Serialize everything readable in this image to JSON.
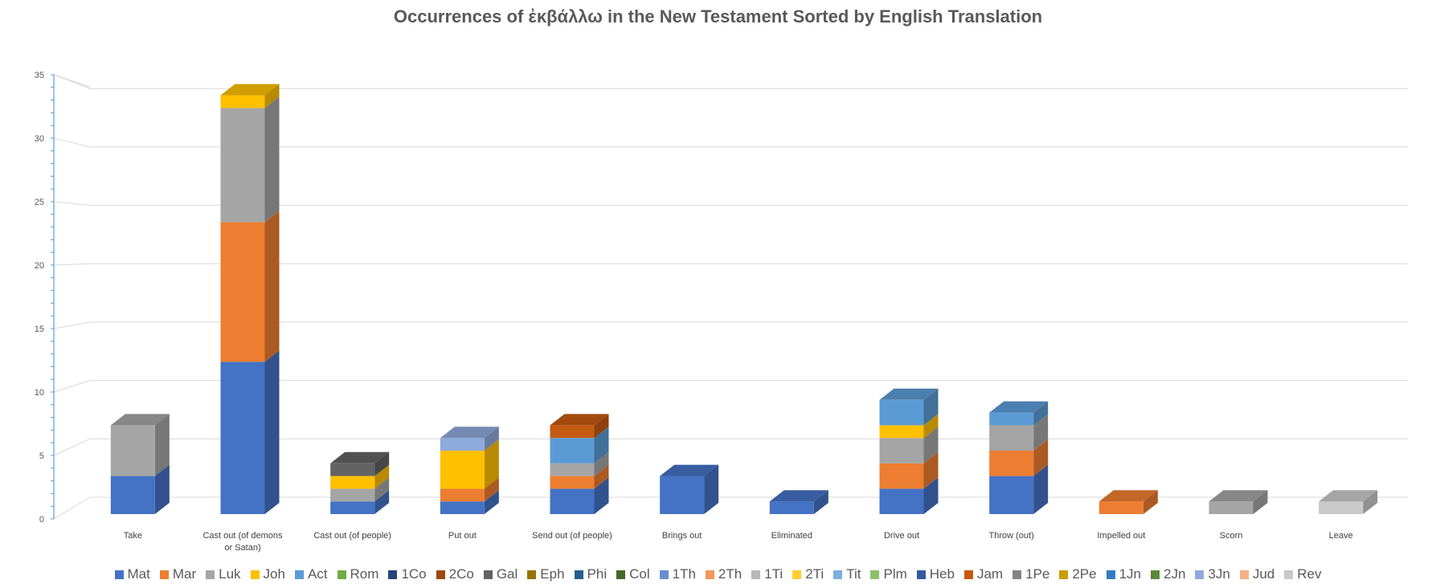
{
  "chart_data": {
    "type": "bar",
    "stacked": true,
    "three_d": true,
    "title": "Occurrences of ἐκβάλλω in the New Testament Sorted by English Translation",
    "xlabel": "",
    "ylabel": "",
    "ylim": [
      0,
      35
    ],
    "yticks": [
      "0",
      "5",
      "10",
      "15",
      "20",
      "25",
      "30",
      "35"
    ],
    "grid": true,
    "legend_position": "bottom",
    "categories": [
      "Take",
      "Cast out (of demons or Satan)",
      "Cast out (of people)",
      "Put out",
      "Send out (of people)",
      "Brings out",
      "Eliminated",
      "Drive out",
      "Throw (out)",
      "Impelled out",
      "Scorn",
      "Leave"
    ],
    "series": [
      {
        "name": "Mat",
        "color": "#4472c4",
        "values": [
          3,
          12,
          1,
          1,
          2,
          3,
          1,
          2,
          3,
          0,
          0,
          0
        ]
      },
      {
        "name": "Mar",
        "color": "#ed7d31",
        "values": [
          0,
          11,
          0,
          1,
          1,
          0,
          0,
          2,
          2,
          1,
          0,
          0
        ]
      },
      {
        "name": "Luk",
        "color": "#a5a5a5",
        "values": [
          4,
          9,
          1,
          0,
          1,
          0,
          0,
          2,
          2,
          0,
          1,
          0
        ]
      },
      {
        "name": "Joh",
        "color": "#ffc000",
        "values": [
          0,
          1,
          1,
          3,
          0,
          0,
          0,
          1,
          0,
          0,
          0,
          0
        ]
      },
      {
        "name": "Act",
        "color": "#5b9bd5",
        "values": [
          0,
          0,
          0,
          0,
          2,
          0,
          0,
          2,
          1,
          0,
          0,
          0
        ]
      },
      {
        "name": "Rom",
        "color": "#70ad47",
        "values": [
          0,
          0,
          0,
          0,
          0,
          0,
          0,
          0,
          0,
          0,
          0,
          0
        ]
      },
      {
        "name": "1Co",
        "color": "#264478",
        "values": [
          0,
          0,
          0,
          0,
          0,
          0,
          0,
          0,
          0,
          0,
          0,
          0
        ]
      },
      {
        "name": "2Co",
        "color": "#9e480e",
        "values": [
          0,
          0,
          0,
          0,
          0,
          0,
          0,
          0,
          0,
          0,
          0,
          0
        ]
      },
      {
        "name": "Gal",
        "color": "#636363",
        "values": [
          0,
          0,
          1,
          0,
          0,
          0,
          0,
          0,
          0,
          0,
          0,
          0
        ]
      },
      {
        "name": "Eph",
        "color": "#997300",
        "values": [
          0,
          0,
          0,
          0,
          0,
          0,
          0,
          0,
          0,
          0,
          0,
          0
        ]
      },
      {
        "name": "Phi",
        "color": "#255e91",
        "values": [
          0,
          0,
          0,
          0,
          0,
          0,
          0,
          0,
          0,
          0,
          0,
          0
        ]
      },
      {
        "name": "Col",
        "color": "#43682b",
        "values": [
          0,
          0,
          0,
          0,
          0,
          0,
          0,
          0,
          0,
          0,
          0,
          0
        ]
      },
      {
        "name": "1Th",
        "color": "#698ed0",
        "values": [
          0,
          0,
          0,
          0,
          0,
          0,
          0,
          0,
          0,
          0,
          0,
          0
        ]
      },
      {
        "name": "2Th",
        "color": "#f1975a",
        "values": [
          0,
          0,
          0,
          0,
          0,
          0,
          0,
          0,
          0,
          0,
          0,
          0
        ]
      },
      {
        "name": "1Ti",
        "color": "#b7b7b7",
        "values": [
          0,
          0,
          0,
          0,
          0,
          0,
          0,
          0,
          0,
          0,
          0,
          0
        ]
      },
      {
        "name": "2Ti",
        "color": "#ffcd33",
        "values": [
          0,
          0,
          0,
          0,
          0,
          0,
          0,
          0,
          0,
          0,
          0,
          0
        ]
      },
      {
        "name": "Tit",
        "color": "#7cafdd",
        "values": [
          0,
          0,
          0,
          0,
          0,
          0,
          0,
          0,
          0,
          0,
          0,
          0
        ]
      },
      {
        "name": "Plm",
        "color": "#8cc168",
        "values": [
          0,
          0,
          0,
          0,
          0,
          0,
          0,
          0,
          0,
          0,
          0,
          0
        ]
      },
      {
        "name": "Heb",
        "color": "#335aa1",
        "values": [
          0,
          0,
          0,
          0,
          0,
          0,
          0,
          0,
          0,
          0,
          0,
          0
        ]
      },
      {
        "name": "Jam",
        "color": "#c55a11",
        "values": [
          0,
          0,
          0,
          0,
          1,
          0,
          0,
          0,
          0,
          0,
          0,
          0
        ]
      },
      {
        "name": "1Pe",
        "color": "#848484",
        "values": [
          0,
          0,
          0,
          0,
          0,
          0,
          0,
          0,
          0,
          0,
          0,
          0
        ]
      },
      {
        "name": "2Pe",
        "color": "#cc9a00",
        "values": [
          0,
          0,
          0,
          0,
          0,
          0,
          0,
          0,
          0,
          0,
          0,
          0
        ]
      },
      {
        "name": "1Jn",
        "color": "#327dc2",
        "values": [
          0,
          0,
          0,
          0,
          0,
          0,
          0,
          0,
          0,
          0,
          0,
          0
        ]
      },
      {
        "name": "2Jn",
        "color": "#5a8a39",
        "values": [
          0,
          0,
          0,
          0,
          0,
          0,
          0,
          0,
          0,
          0,
          0,
          0
        ]
      },
      {
        "name": "3Jn",
        "color": "#8faadc",
        "values": [
          0,
          0,
          0,
          1,
          0,
          0,
          0,
          0,
          0,
          0,
          0,
          0
        ]
      },
      {
        "name": "Jud",
        "color": "#f4b183",
        "values": [
          0,
          0,
          0,
          0,
          0,
          0,
          0,
          0,
          0,
          0,
          0,
          0
        ]
      },
      {
        "name": "Rev",
        "color": "#c9c9c9",
        "values": [
          0,
          0,
          0,
          0,
          0,
          0,
          0,
          0,
          0,
          0,
          0,
          1
        ]
      }
    ]
  }
}
